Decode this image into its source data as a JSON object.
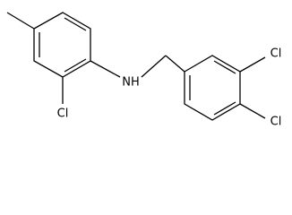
{
  "atoms": {
    "chlorine_1": "Cl",
    "amine": "NH",
    "chlorine_2": "Cl",
    "chlorine_3": "Cl"
  }
}
